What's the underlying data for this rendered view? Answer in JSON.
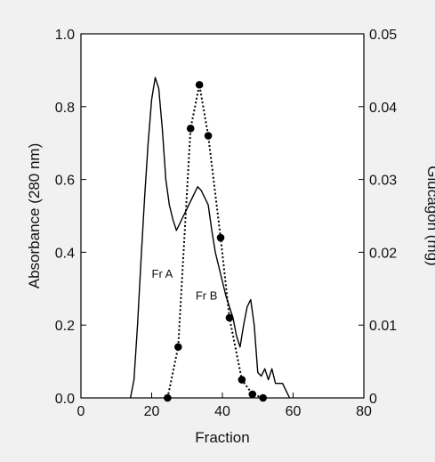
{
  "chart_data": {
    "type": "line",
    "title": "",
    "xlabel": "Fraction",
    "ylabel": "Absorbance (280 nm)",
    "y2label": "Glucagon (mg)",
    "xlim": [
      0,
      80
    ],
    "ylim": [
      0,
      1.0
    ],
    "y2lim": [
      0,
      0.05
    ],
    "x_ticks": [
      0,
      20,
      40,
      60,
      80
    ],
    "x_tick_labels": [
      "0",
      "20",
      "40",
      "60",
      "80"
    ],
    "y_ticks": [
      0,
      0.2,
      0.4,
      0.6,
      0.8,
      1.0
    ],
    "y_tick_labels": [
      "0.0",
      "0.2",
      "0.4",
      "0.6",
      "0.8",
      "1.0"
    ],
    "y2_ticks": [
      0,
      0.01,
      0.02,
      0.03,
      0.04,
      0.05
    ],
    "y2_tick_labels": [
      "0",
      "0.01",
      "0.02",
      "0.03",
      "0.04",
      "0.05"
    ],
    "grid": false,
    "series": [
      {
        "axis": "left",
        "style": "solid",
        "x": [
          14,
          15,
          16,
          17,
          18,
          19,
          20,
          21,
          22,
          23,
          24,
          25,
          26,
          27,
          28,
          29,
          30,
          31,
          32,
          33,
          34,
          35,
          36,
          37,
          38,
          39,
          40,
          41,
          42,
          43,
          44,
          45,
          46,
          47,
          48,
          49,
          50,
          51,
          52,
          53,
          54,
          55,
          56,
          57,
          58,
          59
        ],
        "values": [
          0.0,
          0.05,
          0.2,
          0.38,
          0.55,
          0.7,
          0.82,
          0.88,
          0.85,
          0.74,
          0.6,
          0.53,
          0.49,
          0.46,
          0.48,
          0.5,
          0.52,
          0.54,
          0.56,
          0.58,
          0.57,
          0.55,
          0.53,
          0.46,
          0.4,
          0.36,
          0.32,
          0.28,
          0.25,
          0.22,
          0.17,
          0.14,
          0.2,
          0.25,
          0.27,
          0.2,
          0.07,
          0.06,
          0.08,
          0.05,
          0.08,
          0.04,
          0.04,
          0.04,
          0.02,
          0.0
        ]
      },
      {
        "axis": "right",
        "style": "dotted",
        "marker": "circle",
        "x": [
          24.5,
          27.5,
          31,
          33.5,
          36,
          39.5,
          42,
          45.5,
          48.5,
          51.5
        ],
        "values": [
          0.0,
          0.007,
          0.037,
          0.043,
          0.036,
          0.022,
          0.011,
          0.0025,
          0.0005,
          0.0
        ]
      }
    ],
    "annotations": [
      {
        "text": "Fr A",
        "x": 23,
        "y": 0.33
      },
      {
        "text": "Fr B",
        "x": 35.5,
        "y": 0.27
      }
    ]
  }
}
